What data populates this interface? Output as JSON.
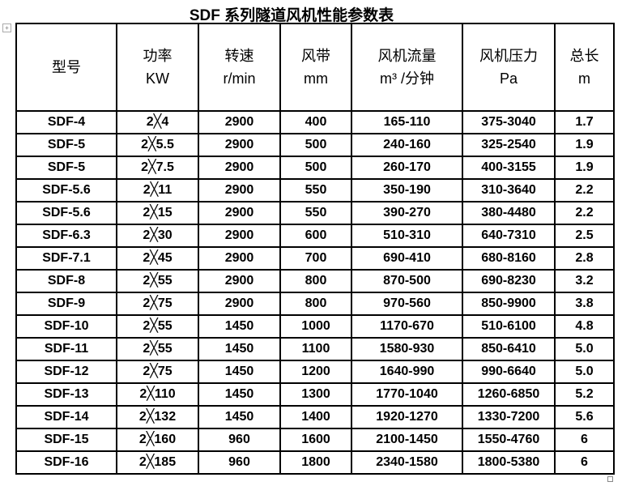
{
  "title": "SDF 系列隧道风机性能参数表",
  "headers": [
    {
      "name": "型号",
      "unit": ""
    },
    {
      "name": "功率",
      "unit": "KW"
    },
    {
      "name": "转速",
      "unit": "r/min"
    },
    {
      "name": "风带",
      "unit": "mm"
    },
    {
      "name": "风机流量",
      "unit": "m³ /分钟"
    },
    {
      "name": "风机压力",
      "unit": "Pa"
    },
    {
      "name": "总长",
      "unit": "m"
    }
  ],
  "rows": [
    [
      "SDF-4",
      "2╳4",
      "2900",
      "400",
      "165-110",
      "375-3040",
      "1.7"
    ],
    [
      "SDF-5",
      "2╳5.5",
      "2900",
      "500",
      "240-160",
      "325-2540",
      "1.9"
    ],
    [
      "SDF-5",
      "2╳7.5",
      "2900",
      "500",
      "260-170",
      "400-3155",
      "1.9"
    ],
    [
      "SDF-5.6",
      "2╳11",
      "2900",
      "550",
      "350-190",
      "310-3640",
      "2.2"
    ],
    [
      "SDF-5.6",
      "2╳15",
      "2900",
      "550",
      "390-270",
      "380-4480",
      "2.2"
    ],
    [
      "SDF-6.3",
      "2╳30",
      "2900",
      "600",
      "510-310",
      "640-7310",
      "2.5"
    ],
    [
      "SDF-7.1",
      "2╳45",
      "2900",
      "700",
      "690-410",
      "680-8160",
      "2.8"
    ],
    [
      "SDF-8",
      "2╳55",
      "2900",
      "800",
      "870-500",
      "690-8230",
      "3.2"
    ],
    [
      "SDF-9",
      "2╳75",
      "2900",
      "800",
      "970-560",
      "850-9900",
      "3.8"
    ],
    [
      "SDF-10",
      "2╳55",
      "1450",
      "1000",
      "1170-670",
      "510-6100",
      "4.8"
    ],
    [
      "SDF-11",
      "2╳55",
      "1450",
      "1100",
      "1580-930",
      "850-6410",
      "5.0"
    ],
    [
      "SDF-12",
      "2╳75",
      "1450",
      "1200",
      "1640-990",
      "990-6640",
      "5.0"
    ],
    [
      "SDF-13",
      "2╳110",
      "1450",
      "1300",
      "1770-1040",
      "1260-6850",
      "5.2"
    ],
    [
      "SDF-14",
      "2╳132",
      "1450",
      "1400",
      "1920-1270",
      "1330-7200",
      "5.6"
    ],
    [
      "SDF-15",
      "2╳160",
      "960",
      "1600",
      "2100-1450",
      "1550-4760",
      "6"
    ],
    [
      "SDF-16",
      "2╳185",
      "960",
      "1800",
      "2340-1580",
      "1800-5380",
      "6"
    ]
  ]
}
